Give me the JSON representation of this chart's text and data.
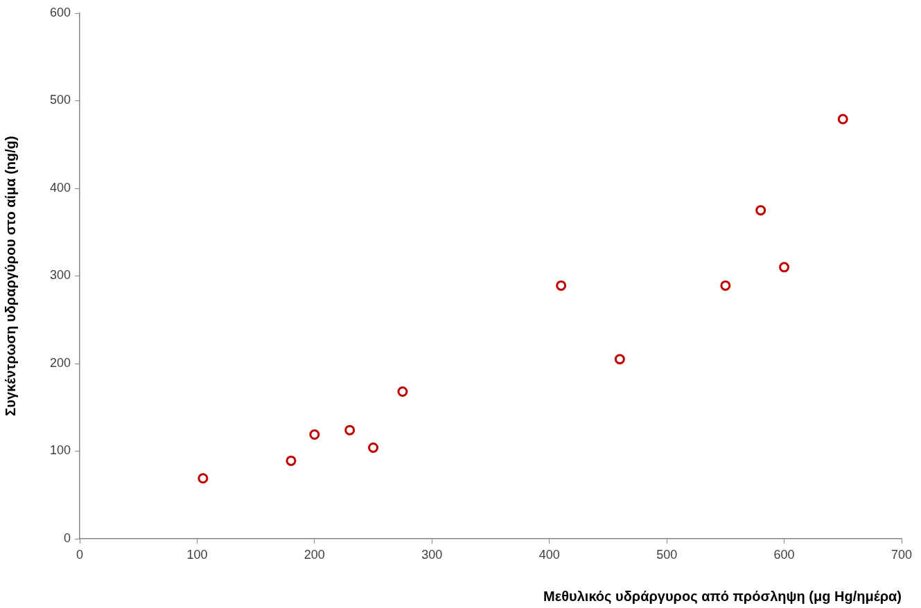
{
  "chart_data": {
    "type": "scatter",
    "xlabel": "Μεθυλικός υδράργυρος από πρόσληψη (μg Hg/ημέρα)",
    "ylabel": "Συγκέντρωση υδραργύρου στο αίμα (ng/g)",
    "x": [
      105,
      180,
      200,
      230,
      250,
      275,
      410,
      460,
      550,
      580,
      600,
      650
    ],
    "series": [
      {
        "color": "#c00000",
        "values": [
          69,
          89,
          119,
          124,
          104,
          168,
          289,
          205,
          289,
          375,
          310,
          479
        ]
      }
    ],
    "xlim": [
      0,
      700
    ],
    "xticks": [
      0,
      100,
      200,
      300,
      400,
      500,
      600,
      700
    ],
    "ylim": [
      0,
      600
    ],
    "yticks": [
      0,
      100,
      200,
      300,
      400,
      500,
      600
    ],
    "grid": false,
    "legend": false,
    "marker": "circle"
  }
}
